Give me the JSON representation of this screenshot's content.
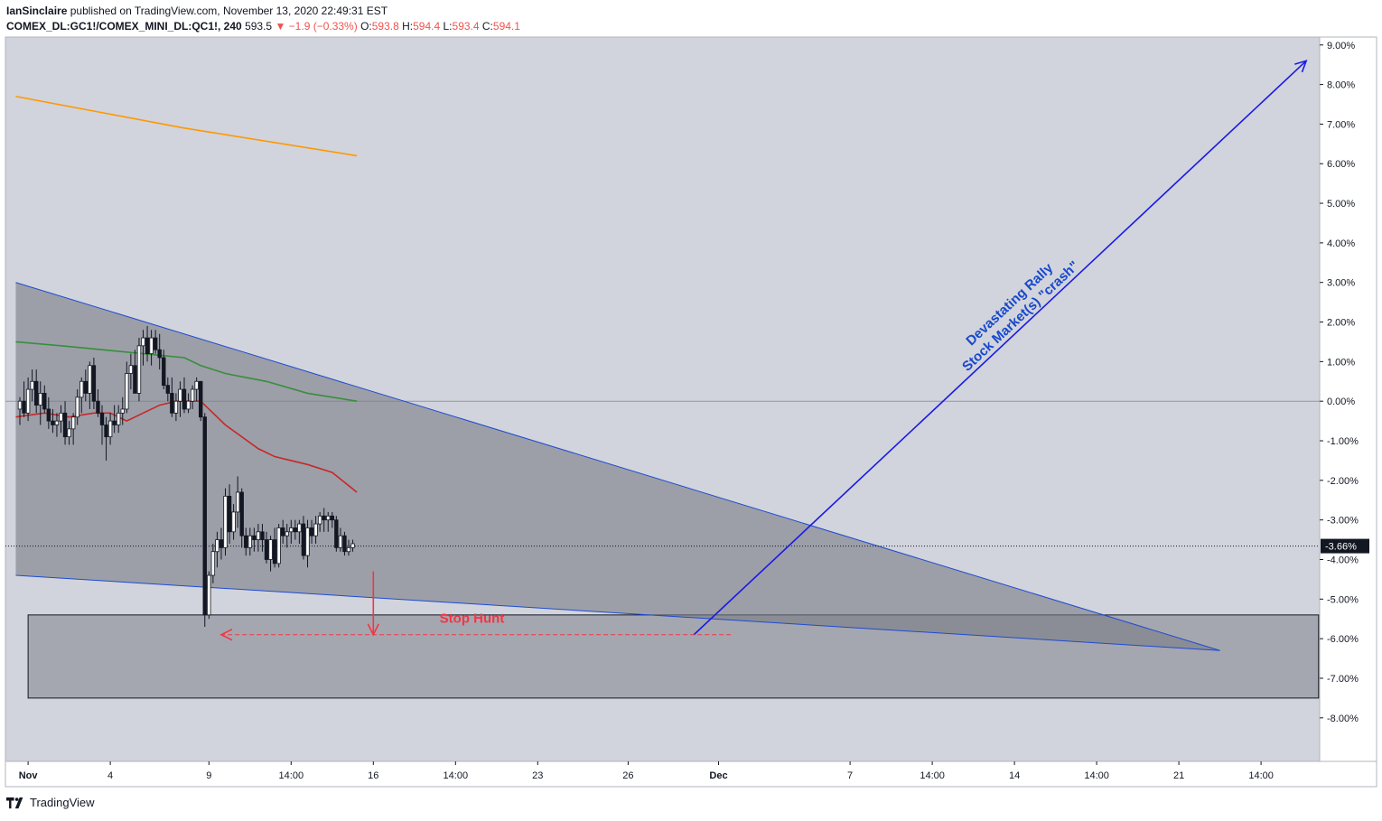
{
  "header": {
    "author": "IanSinclaire",
    "published_text": "published on TradingView.com, November 13, 2020 22:49:31 EST",
    "symbol": "COMEX_DL:GC1!/COMEX_MINI_DL:QC1!, 240",
    "last": "593.5",
    "change": "−1.9 (−0.33%)",
    "o_label": "O:",
    "o_value": "593.8",
    "h_label": "H:",
    "h_value": "594.4",
    "l_label": "L:",
    "l_value": "593.4",
    "c_label": "C:",
    "c_value": "594.1"
  },
  "footer": {
    "brand": "TradingView",
    "logo_icon": "tradingview-logo-icon"
  },
  "colors": {
    "background": "#d1d4dc",
    "wedge_fill": "#787b86",
    "zone_fill": "#9598a1",
    "trendline": "#1e4bd2",
    "arrow": "#1a1ae6",
    "stop_hunt": "#f23645",
    "orange_ma": "#ff9800",
    "green_ma": "#388e3c",
    "red_ma": "#c62828",
    "text_blue": "#1848cc"
  },
  "chart_data": {
    "type": "candlestick",
    "y_axis": {
      "unit": "%",
      "range": [
        -9.1,
        9.2
      ],
      "ticks": [
        "9.00%",
        "8.00%",
        "7.00%",
        "6.00%",
        "5.00%",
        "4.00%",
        "3.00%",
        "2.00%",
        "1.00%",
        "0.00%",
        "-1.00%",
        "-2.00%",
        "-3.00%",
        "-4.00%",
        "-5.00%",
        "-6.00%",
        "-7.00%",
        "-8.00%"
      ],
      "tick_values": [
        9,
        8,
        7,
        6,
        5,
        4,
        3,
        2,
        1,
        0,
        -1,
        -2,
        -3,
        -4,
        -5,
        -6,
        -7,
        -8
      ],
      "current_value": -3.66,
      "current_label": "-3.66%"
    },
    "x_axis": {
      "ticks": [
        "Nov",
        "4",
        "9",
        "14:00",
        "16",
        "14:00",
        "23",
        "26",
        "Dec",
        "7",
        "14:00",
        "14",
        "14:00",
        "21",
        "14:00"
      ],
      "tick_bars": [
        2,
        22,
        46,
        66,
        86,
        106,
        126,
        148,
        170,
        202,
        222,
        242,
        262,
        282,
        302
      ]
    },
    "candles": [
      {
        "o": -0.2,
        "h": 0.1,
        "l": -0.6,
        "c": 0.0
      },
      {
        "o": 0.0,
        "h": 0.5,
        "l": -0.4,
        "c": -0.3
      },
      {
        "o": -0.3,
        "h": 0.6,
        "l": -0.5,
        "c": 0.3
      },
      {
        "o": 0.3,
        "h": 0.8,
        "l": 0.0,
        "c": 0.5
      },
      {
        "o": 0.5,
        "h": 0.8,
        "l": -0.3,
        "c": -0.1
      },
      {
        "o": -0.1,
        "h": 0.5,
        "l": -0.6,
        "c": 0.2
      },
      {
        "o": 0.2,
        "h": 0.4,
        "l": -0.3,
        "c": -0.2
      },
      {
        "o": -0.2,
        "h": 0.1,
        "l": -0.7,
        "c": -0.5
      },
      {
        "o": -0.5,
        "h": -0.2,
        "l": -0.8,
        "c": -0.6
      },
      {
        "o": -0.6,
        "h": -0.3,
        "l": -0.9,
        "c": -0.5
      },
      {
        "o": -0.5,
        "h": -0.1,
        "l": -0.8,
        "c": -0.3
      },
      {
        "o": -0.3,
        "h": 0.0,
        "l": -1.1,
        "c": -0.9
      },
      {
        "o": -0.9,
        "h": -0.5,
        "l": -1.1,
        "c": -0.7
      },
      {
        "o": -0.7,
        "h": -0.3,
        "l": -1.1,
        "c": -0.4
      },
      {
        "o": -0.4,
        "h": 0.3,
        "l": -0.6,
        "c": 0.1
      },
      {
        "o": 0.1,
        "h": 0.6,
        "l": -0.3,
        "c": 0.5
      },
      {
        "o": 0.5,
        "h": 0.8,
        "l": 0.0,
        "c": 0.2
      },
      {
        "o": 0.2,
        "h": 1.0,
        "l": -0.2,
        "c": 0.9
      },
      {
        "o": 0.9,
        "h": 1.1,
        "l": -0.2,
        "c": 0.0
      },
      {
        "o": 0.0,
        "h": 0.3,
        "l": -0.4,
        "c": -0.3
      },
      {
        "o": -0.3,
        "h": -0.1,
        "l": -1.1,
        "c": -0.6
      },
      {
        "o": -0.6,
        "h": -0.4,
        "l": -1.5,
        "c": -0.9
      },
      {
        "o": -0.9,
        "h": -0.3,
        "l": -1.1,
        "c": -0.5
      },
      {
        "o": -0.5,
        "h": -0.1,
        "l": -0.8,
        "c": -0.6
      },
      {
        "o": -0.6,
        "h": -0.1,
        "l": -0.8,
        "c": -0.3
      },
      {
        "o": -0.3,
        "h": 0.1,
        "l": -0.6,
        "c": -0.2
      },
      {
        "o": -0.2,
        "h": 1.0,
        "l": -0.3,
        "c": 0.7
      },
      {
        "o": 0.7,
        "h": 1.2,
        "l": 0.3,
        "c": 0.9
      },
      {
        "o": 0.9,
        "h": 1.3,
        "l": 0.2,
        "c": 0.2
      },
      {
        "o": 0.2,
        "h": 1.6,
        "l": 0.0,
        "c": 1.4
      },
      {
        "o": 1.4,
        "h": 1.8,
        "l": 0.9,
        "c": 1.6
      },
      {
        "o": 1.6,
        "h": 1.9,
        "l": 1.0,
        "c": 1.2
      },
      {
        "o": 1.2,
        "h": 1.8,
        "l": 0.9,
        "c": 1.6
      },
      {
        "o": 1.6,
        "h": 1.8,
        "l": 1.2,
        "c": 1.3
      },
      {
        "o": 1.3,
        "h": 1.7,
        "l": 0.8,
        "c": 1.1
      },
      {
        "o": 1.1,
        "h": 1.3,
        "l": 0.3,
        "c": 0.4
      },
      {
        "o": 0.4,
        "h": 0.6,
        "l": 0.0,
        "c": 0.2
      },
      {
        "o": 0.2,
        "h": 0.6,
        "l": -0.4,
        "c": -0.3
      },
      {
        "o": -0.3,
        "h": 0.2,
        "l": -0.5,
        "c": 0.0
      },
      {
        "o": 0.0,
        "h": 0.5,
        "l": -0.4,
        "c": 0.3
      },
      {
        "o": 0.3,
        "h": 0.6,
        "l": -0.3,
        "c": -0.2
      },
      {
        "o": -0.2,
        "h": 0.2,
        "l": -0.3,
        "c": 0.0
      },
      {
        "o": 0.0,
        "h": 0.4,
        "l": -0.2,
        "c": 0.3
      },
      {
        "o": 0.3,
        "h": 0.6,
        "l": 0.0,
        "c": 0.5
      },
      {
        "o": 0.5,
        "h": 0.5,
        "l": -0.5,
        "c": -0.4
      },
      {
        "o": -0.4,
        "h": -0.3,
        "l": -5.7,
        "c": -5.4
      },
      {
        "o": -5.4,
        "h": -4.3,
        "l": -5.5,
        "c": -4.4
      },
      {
        "o": -4.4,
        "h": -3.6,
        "l": -4.6,
        "c": -3.8
      },
      {
        "o": -3.8,
        "h": -3.3,
        "l": -4.2,
        "c": -3.5
      },
      {
        "o": -3.5,
        "h": -3.2,
        "l": -4.0,
        "c": -3.7
      },
      {
        "o": -3.7,
        "h": -2.2,
        "l": -3.9,
        "c": -2.4
      },
      {
        "o": -2.4,
        "h": -2.1,
        "l": -3.6,
        "c": -3.3
      },
      {
        "o": -3.3,
        "h": -2.6,
        "l": -3.5,
        "c": -2.8
      },
      {
        "o": -2.8,
        "h": -1.9,
        "l": -3.2,
        "c": -2.3
      },
      {
        "o": -2.3,
        "h": -2.2,
        "l": -3.7,
        "c": -3.4
      },
      {
        "o": -3.4,
        "h": -3.2,
        "l": -3.9,
        "c": -3.7
      },
      {
        "o": -3.7,
        "h": -3.2,
        "l": -3.9,
        "c": -3.4
      },
      {
        "o": -3.4,
        "h": -3.2,
        "l": -3.8,
        "c": -3.5
      },
      {
        "o": -3.5,
        "h": -3.1,
        "l": -3.8,
        "c": -3.3
      },
      {
        "o": -3.3,
        "h": -3.1,
        "l": -3.8,
        "c": -3.5
      },
      {
        "o": -3.5,
        "h": -3.3,
        "l": -4.1,
        "c": -4.0
      },
      {
        "o": -4.0,
        "h": -3.4,
        "l": -4.3,
        "c": -3.5
      },
      {
        "o": -3.5,
        "h": -3.2,
        "l": -4.2,
        "c": -4.1
      },
      {
        "o": -4.1,
        "h": -3.1,
        "l": -4.2,
        "c": -3.2
      },
      {
        "o": -3.2,
        "h": -3.0,
        "l": -3.6,
        "c": -3.4
      },
      {
        "o": -3.4,
        "h": -3.1,
        "l": -3.7,
        "c": -3.3
      },
      {
        "o": -3.3,
        "h": -3.0,
        "l": -3.6,
        "c": -3.2
      },
      {
        "o": -3.2,
        "h": -3.0,
        "l": -3.5,
        "c": -3.3
      },
      {
        "o": -3.3,
        "h": -3.0,
        "l": -3.6,
        "c": -3.1
      },
      {
        "o": -3.1,
        "h": -2.9,
        "l": -4.0,
        "c": -3.9
      },
      {
        "o": -3.9,
        "h": -3.0,
        "l": -4.2,
        "c": -3.2
      },
      {
        "o": -3.2,
        "h": -3.0,
        "l": -3.6,
        "c": -3.4
      },
      {
        "o": -3.4,
        "h": -2.9,
        "l": -3.6,
        "c": -3.1
      },
      {
        "o": -3.1,
        "h": -2.8,
        "l": -3.3,
        "c": -2.9
      },
      {
        "o": -2.9,
        "h": -2.7,
        "l": -3.3,
        "c": -3.0
      },
      {
        "o": -3.0,
        "h": -2.8,
        "l": -3.3,
        "c": -2.9
      },
      {
        "o": -2.9,
        "h": -2.8,
        "l": -3.2,
        "c": -3.0
      },
      {
        "o": -3.0,
        "h": -2.9,
        "l": -3.8,
        "c": -3.7
      },
      {
        "o": -3.7,
        "h": -3.2,
        "l": -3.8,
        "c": -3.4
      },
      {
        "o": -3.4,
        "h": -3.3,
        "l": -3.9,
        "c": -3.8
      },
      {
        "o": -3.8,
        "h": -3.5,
        "l": -3.9,
        "c": -3.7
      },
      {
        "o": -3.7,
        "h": -3.5,
        "l": -3.8,
        "c": -3.6
      }
    ],
    "moving_averages": [
      {
        "color": "#ff9800",
        "points": [
          [
            -1,
            7.7
          ],
          [
            40,
            6.9
          ],
          [
            82,
            6.2
          ]
        ]
      },
      {
        "color": "#388e3c",
        "points": [
          [
            -1,
            1.5
          ],
          [
            10,
            1.4
          ],
          [
            20,
            1.3
          ],
          [
            30,
            1.2
          ],
          [
            40,
            1.1
          ],
          [
            44,
            0.9
          ],
          [
            50,
            0.7
          ],
          [
            60,
            0.5
          ],
          [
            70,
            0.2
          ],
          [
            82,
            0.0
          ]
        ]
      },
      {
        "color": "#c62828",
        "points": [
          [
            -1,
            -0.4
          ],
          [
            6,
            -0.3
          ],
          [
            12,
            -0.4
          ],
          [
            18,
            -0.3
          ],
          [
            22,
            -0.3
          ],
          [
            26,
            -0.5
          ],
          [
            30,
            -0.3
          ],
          [
            34,
            -0.1
          ],
          [
            38,
            0.0
          ],
          [
            44,
            0.0
          ],
          [
            46,
            -0.2
          ],
          [
            50,
            -0.6
          ],
          [
            54,
            -0.9
          ],
          [
            58,
            -1.2
          ],
          [
            62,
            -1.4
          ],
          [
            66,
            -1.5
          ],
          [
            70,
            -1.6
          ],
          [
            76,
            -1.8
          ],
          [
            82,
            -2.3
          ]
        ]
      }
    ],
    "drawings": {
      "wedge": [
        [
          -1,
          3.0
        ],
        [
          292,
          -6.3
        ],
        [
          -1,
          -4.4
        ]
      ],
      "zone": {
        "bar_start": 2,
        "bar_end": 316,
        "top": -5.4,
        "bottom": -7.5
      },
      "arrow_up": {
        "from": [
          164,
          -5.9
        ],
        "to": [
          313,
          8.6
        ]
      },
      "stop_hunt_line": {
        "from": [
          173,
          -5.9
        ],
        "to": [
          49,
          -5.9
        ]
      },
      "stop_hunt_arrow": {
        "from": [
          86,
          -4.3
        ],
        "to": [
          86,
          -5.9
        ]
      }
    },
    "annotations": {
      "stop_hunt": "Stop Hunt",
      "rally_line1": "Devastating Rally",
      "rally_line2": "Stock Market(s) \"crash\""
    }
  }
}
